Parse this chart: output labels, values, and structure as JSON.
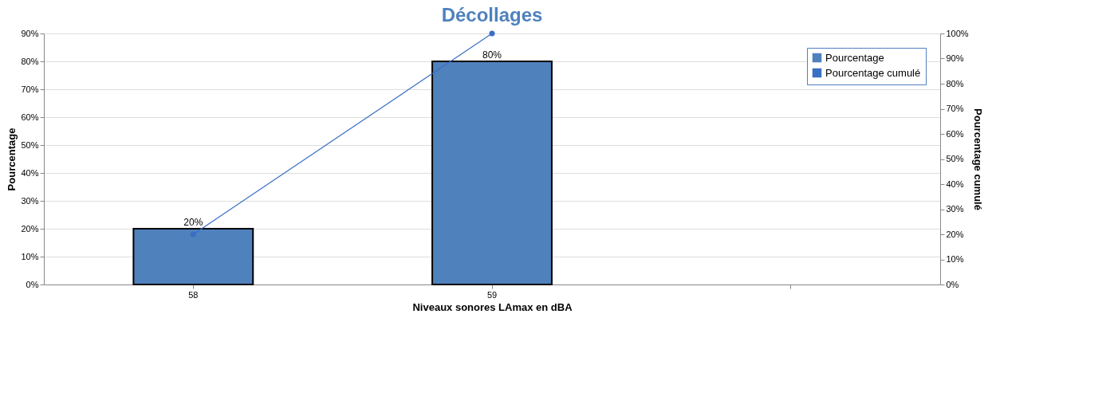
{
  "chart_data": {
    "type": "bar",
    "title": "Décollages",
    "xlabel": "Niveaux sonores LAmax en dBA",
    "ylabel": "Pourcentage",
    "y2label": "Pourcentage cumulé",
    "categories": [
      "58",
      "59",
      null
    ],
    "series": [
      {
        "name": "Pourcentage",
        "color": "#4f81bd",
        "values": [
          20,
          80,
          null
        ],
        "value_labels": [
          "20%",
          "80%",
          null
        ]
      },
      {
        "name": "Pourcentage cumulé",
        "type": "line",
        "axis": "y2",
        "color": "#3a6fc4",
        "values": [
          20,
          100,
          null
        ],
        "marker": "circle",
        "line_style": "solid"
      }
    ],
    "ylim": [
      0,
      90
    ],
    "yticks": [
      {
        "value": 0,
        "label": "0%"
      },
      {
        "value": 10,
        "label": "10%"
      },
      {
        "value": 20,
        "label": "20%"
      },
      {
        "value": 30,
        "label": "30%"
      },
      {
        "value": 40,
        "label": "40%"
      },
      {
        "value": 50,
        "label": "50%"
      },
      {
        "value": 60,
        "label": "60%"
      },
      {
        "value": 70,
        "label": "70%"
      },
      {
        "value": 80,
        "label": "80%"
      },
      {
        "value": 90,
        "label": "90%"
      }
    ],
    "y2lim": [
      0,
      100
    ],
    "y2ticks": [
      {
        "value": 0,
        "label": "0%"
      },
      {
        "value": 10,
        "label": "10%"
      },
      {
        "value": 20,
        "label": "20%"
      },
      {
        "value": 30,
        "label": "30%"
      },
      {
        "value": 40,
        "label": "40%"
      },
      {
        "value": 50,
        "label": "50%"
      },
      {
        "value": 60,
        "label": "60%"
      },
      {
        "value": 70,
        "label": "70%"
      },
      {
        "value": 80,
        "label": "80%"
      },
      {
        "value": 90,
        "label": "90%"
      },
      {
        "value": 100,
        "label": "100%"
      }
    ],
    "grid": "y",
    "legend": "top right"
  }
}
